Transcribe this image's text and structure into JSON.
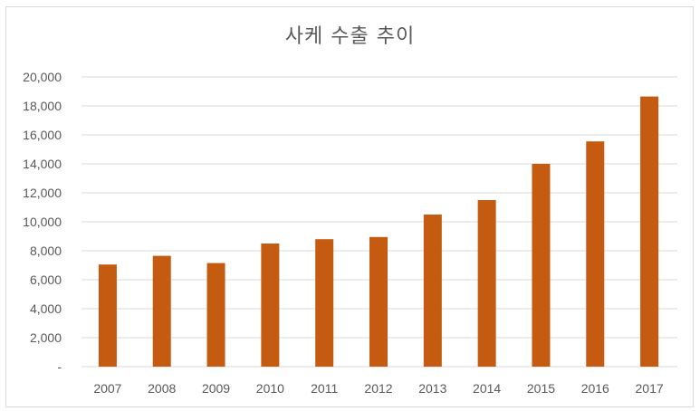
{
  "chart_data": {
    "type": "bar",
    "title": "사케 수출 추이",
    "categories": [
      "2007",
      "2008",
      "2009",
      "2010",
      "2011",
      "2012",
      "2013",
      "2014",
      "2015",
      "2016",
      "2017"
    ],
    "values": [
      7050,
      7650,
      7150,
      8500,
      8800,
      8950,
      10500,
      11500,
      14000,
      15550,
      18650
    ],
    "ylim": [
      0,
      20000
    ],
    "yticks": [
      0,
      2000,
      4000,
      6000,
      8000,
      10000,
      12000,
      14000,
      16000,
      18000,
      20000
    ],
    "ytick_labels": [
      "-",
      "2,000",
      "4,000",
      "6,000",
      "8,000",
      "10,000",
      "12,000",
      "14,000",
      "16,000",
      "18,000",
      "20,000"
    ],
    "bar_color": "#c55a11",
    "grid_color": "#d9d9d9",
    "grid": true
  }
}
